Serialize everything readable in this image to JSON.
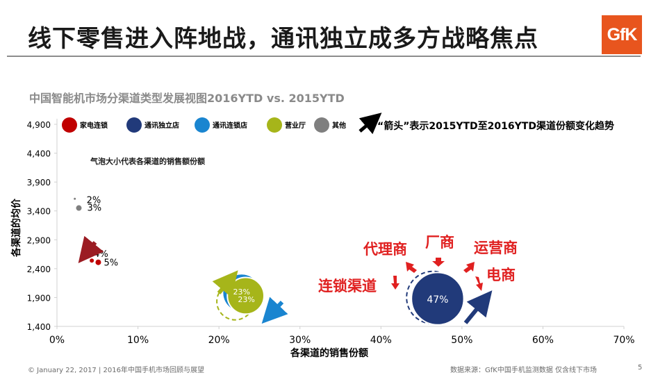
{
  "slide": {
    "title": "线下零售进入阵地战，通讯独立成多方战略焦点",
    "logo_text": "GfK",
    "footer_left": "© January 22, 2017 | 2016年中国手机市场回顾与展望",
    "footer_source": "数据来源：GfK中国手机监测数据 仅含线下市场",
    "page_number": "5"
  },
  "chart_data": {
    "type": "scatter",
    "title": "中国智能机市场分渠道类型发展视图2016YTD vs. 2015YTD",
    "xlabel": "各渠道的销售份额",
    "ylabel": "各渠道的均价",
    "xlim": [
      0,
      70
    ],
    "ylim": [
      1400,
      4900
    ],
    "x_ticks": [
      "0%",
      "10%",
      "20%",
      "30%",
      "40%",
      "50%",
      "60%",
      "70%"
    ],
    "y_ticks": [
      "1,400",
      "1,900",
      "2,400",
      "2,900",
      "3,400",
      "3,900",
      "4,400",
      "4,900"
    ],
    "legend_position": "top",
    "legend": [
      "家电连锁",
      "通讯独立店",
      "通讯连锁店",
      "营业厅",
      "其他"
    ],
    "arrow_note": "“箭头”表示2015YTD至2016YTD渠道份额变化趋势",
    "bubble_note": "气泡大小代表各渠道的销售额份额",
    "series": [
      {
        "name": "家电连锁",
        "color": "#c00000",
        "points_2015": {
          "x": 4.3,
          "y": 2540,
          "label": "4%"
        },
        "points_2016": {
          "x": 5.1,
          "y": 2510,
          "label": "5%"
        },
        "trend": "down-left"
      },
      {
        "name": "通讯独立店",
        "color": "#213a7a",
        "points_2015": {
          "x": 46.4,
          "y": 1900,
          "label": ""
        },
        "points_2016": {
          "x": 47.0,
          "y": 1880,
          "label": "47%"
        },
        "trend": "up-right"
      },
      {
        "name": "通讯连锁店",
        "color": "#1a85d0",
        "points_2015": {
          "x": 22.8,
          "y": 1980,
          "label": "23%"
        },
        "points_2016": {
          "x": 22.8,
          "y": 1980,
          "label": ""
        },
        "trend": "down-left"
      },
      {
        "name": "营业厅",
        "color": "#a6b51a",
        "points_2015": {
          "x": 22.0,
          "y": 1830,
          "label": ""
        },
        "points_2016": {
          "x": 23.3,
          "y": 1930,
          "label": "23%"
        },
        "trend": "up-right"
      },
      {
        "name": "其他",
        "color": "#7f7f7f",
        "points_2015": {
          "x": 2.2,
          "y": 3610,
          "label": "2%"
        },
        "points_2016": {
          "x": 2.7,
          "y": 3450,
          "label": "3%"
        },
        "trend": ""
      }
    ],
    "annotations": [
      "代理商",
      "厂商",
      "运营商",
      "连锁渠道",
      "电商"
    ]
  }
}
